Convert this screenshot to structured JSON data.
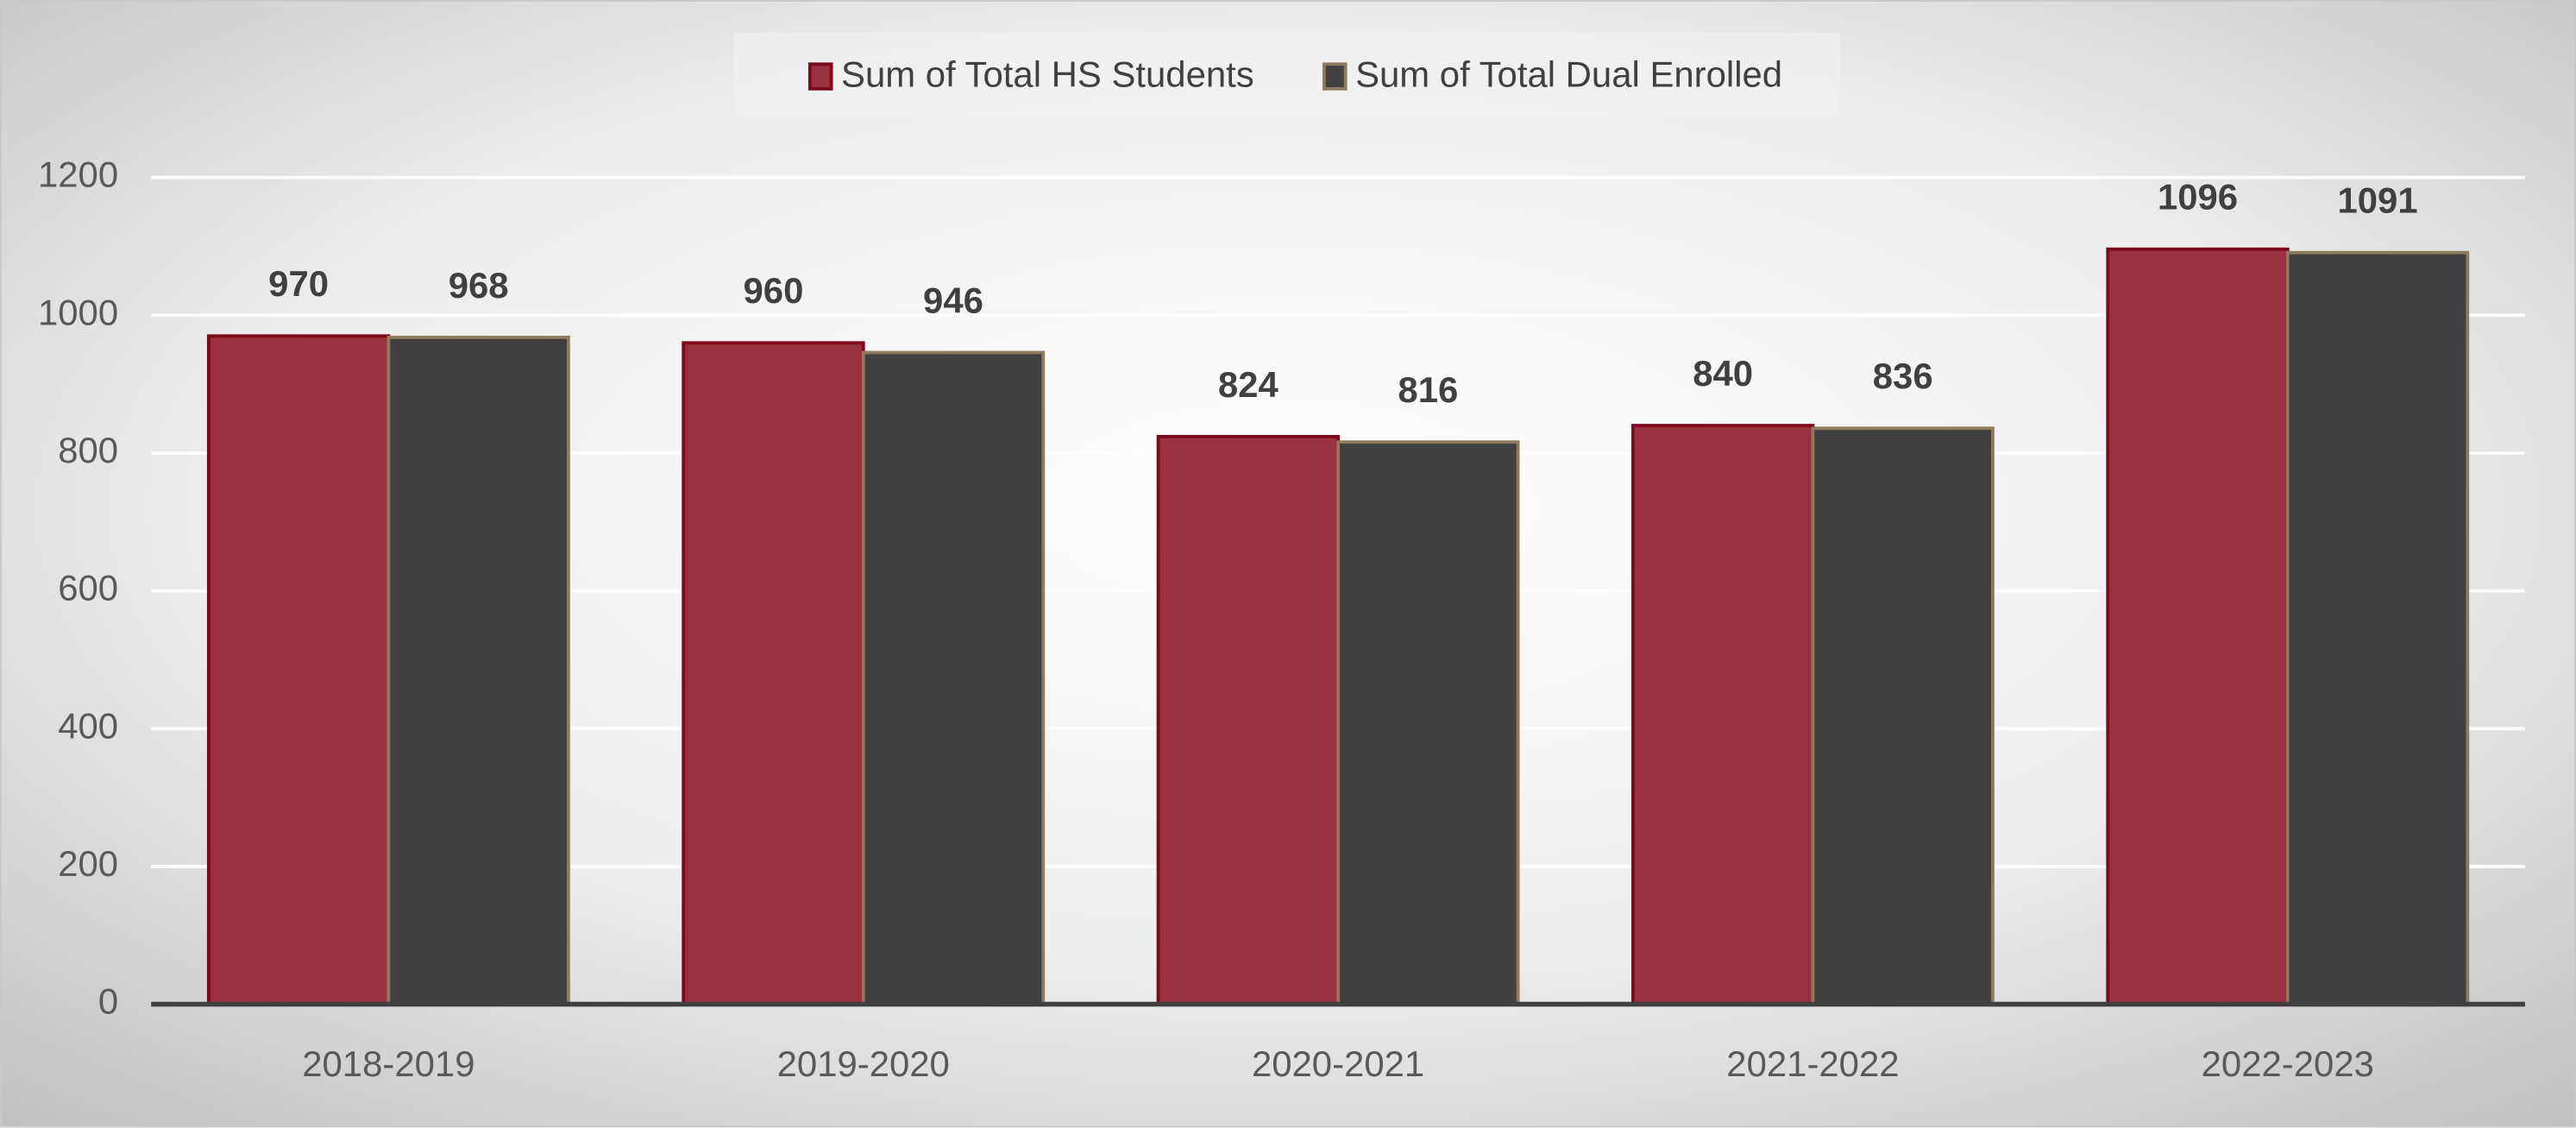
{
  "chart_data": {
    "type": "bar",
    "categories": [
      "2018-2019",
      "2019-2020",
      "2020-2021",
      "2021-2022",
      "2022-2023"
    ],
    "series": [
      {
        "name": "Sum of Total HS Students",
        "color": "#9b3041",
        "values": [
          970,
          960,
          824,
          840,
          1096
        ]
      },
      {
        "name": "Sum of Total Dual Enrolled",
        "color": "#404040",
        "values": [
          968,
          946,
          816,
          836,
          1091
        ]
      }
    ],
    "ylim": [
      0,
      1200
    ],
    "yticks": [
      0,
      200,
      400,
      600,
      800,
      1000,
      1200
    ],
    "grid": true,
    "legend": "top"
  }
}
